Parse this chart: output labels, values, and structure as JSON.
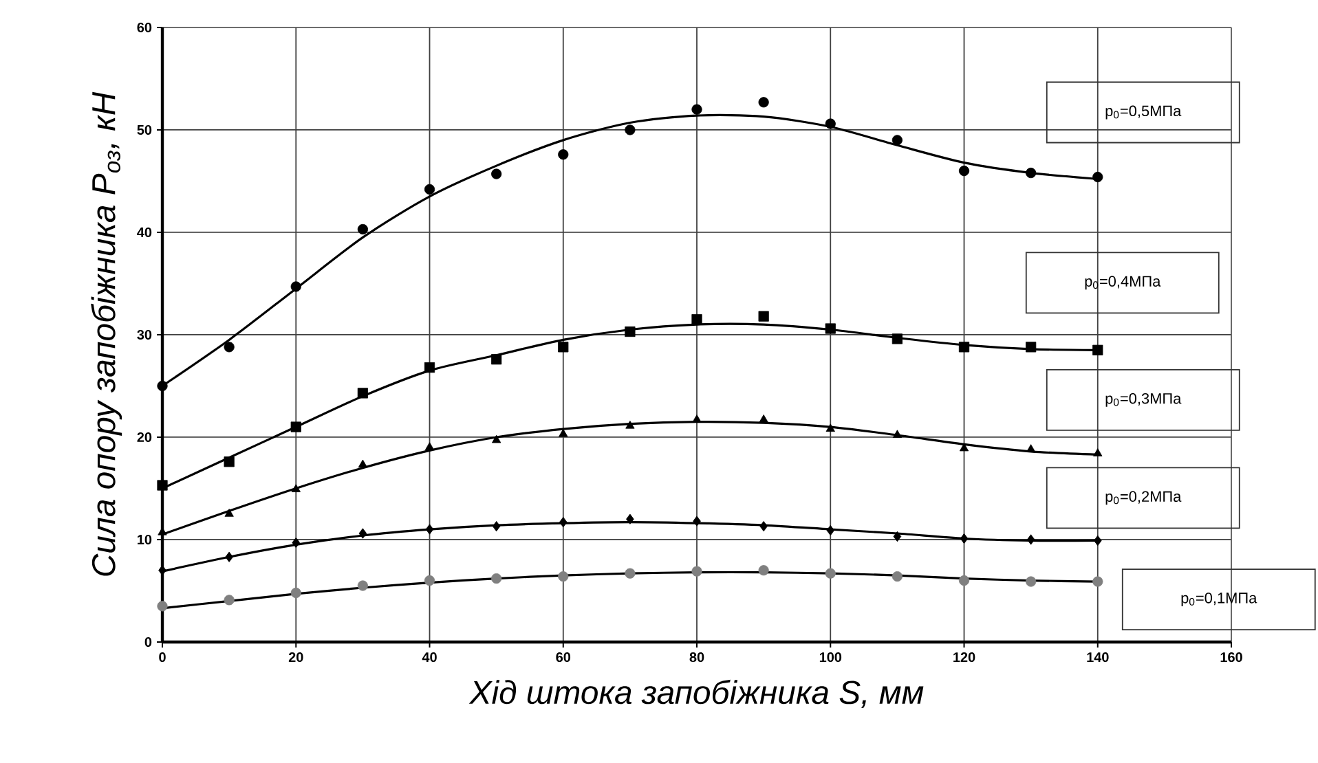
{
  "chart_data": {
    "type": "scatter",
    "xlabel": "Хід штока запобіжника S, мм",
    "ylabel": "Сила опору запобіжника P$_{оз}$, кН",
    "x": [
      0,
      10,
      20,
      30,
      40,
      50,
      60,
      70,
      80,
      90,
      100,
      110,
      120,
      130,
      140
    ],
    "xlim": [
      0,
      160
    ],
    "xticks": [
      0,
      20,
      40,
      60,
      80,
      100,
      120,
      140,
      160
    ],
    "ylim": [
      0,
      60
    ],
    "yticks": [
      0,
      10,
      20,
      30,
      40,
      50,
      60
    ],
    "grid": true,
    "series": [
      {
        "name": "p$_{0}$=0,5МПа",
        "marker": "circle",
        "color": "#000000",
        "values": [
          25,
          28.8,
          34.7,
          40.3,
          44.2,
          45.7,
          47.6,
          50,
          52,
          52.7,
          50.6,
          49,
          46,
          45.8,
          45.4
        ]
      },
      {
        "name": "p$_{0}$=0,4МПа",
        "marker": "square",
        "color": "#000000",
        "values": [
          15.3,
          17.6,
          21,
          24.3,
          26.8,
          27.6,
          28.8,
          30.3,
          31.5,
          31.8,
          30.6,
          29.6,
          28.8,
          28.8,
          28.5
        ]
      },
      {
        "name": "p$_{0}$=0,3МПа",
        "marker": "triangle",
        "color": "#000000",
        "values": [
          10.7,
          12.5,
          14.9,
          17.3,
          19,
          19.7,
          20.3,
          21.1,
          21.7,
          21.7,
          20.8,
          20.2,
          18.9,
          18.8,
          18.4
        ]
      },
      {
        "name": "p$_{0}$=0,2МПа",
        "marker": "diamond",
        "color": "#000000",
        "values": [
          7,
          8.3,
          9.7,
          10.6,
          11,
          11.3,
          11.7,
          12,
          11.8,
          11.3,
          10.9,
          10.3,
          10.1,
          10,
          9.9
        ]
      },
      {
        "name": "p$_{0}$=0,1МПа",
        "marker": "circle",
        "color": "#808080",
        "values": [
          3.5,
          4.1,
          4.8,
          5.5,
          6,
          6.2,
          6.4,
          6.7,
          6.9,
          7,
          6.7,
          6.4,
          6,
          5.9,
          5.9
        ]
      },
      {
        "type": "line",
        "marker": "none",
        "color": "#000000",
        "values": [
          25,
          29.5,
          34.5,
          39.5,
          43.5,
          46.5,
          49,
          50.7,
          51.4,
          51.3,
          50.3,
          48.5,
          46.8,
          45.8,
          45.2
        ]
      },
      {
        "type": "line",
        "marker": "none",
        "color": "#000000",
        "values": [
          15,
          18,
          21,
          24,
          26.5,
          28,
          29.5,
          30.5,
          31,
          31,
          30.5,
          29.7,
          29,
          28.6,
          28.5
        ]
      },
      {
        "type": "line",
        "marker": "none",
        "color": "#000000",
        "values": [
          10.5,
          12.8,
          15,
          17,
          18.7,
          20,
          20.8,
          21.3,
          21.5,
          21.4,
          21,
          20.2,
          19.3,
          18.6,
          18.3
        ]
      },
      {
        "type": "line",
        "marker": "none",
        "color": "#000000",
        "values": [
          6.9,
          8.3,
          9.5,
          10.4,
          11,
          11.4,
          11.6,
          11.7,
          11.6,
          11.4,
          11,
          10.6,
          10.1,
          9.9,
          9.9
        ]
      },
      {
        "type": "line",
        "marker": "none",
        "color": "#000000",
        "values": [
          3.3,
          4,
          4.7,
          5.3,
          5.8,
          6.2,
          6.5,
          6.7,
          6.8,
          6.8,
          6.7,
          6.5,
          6.2,
          6,
          5.9
        ]
      }
    ]
  }
}
